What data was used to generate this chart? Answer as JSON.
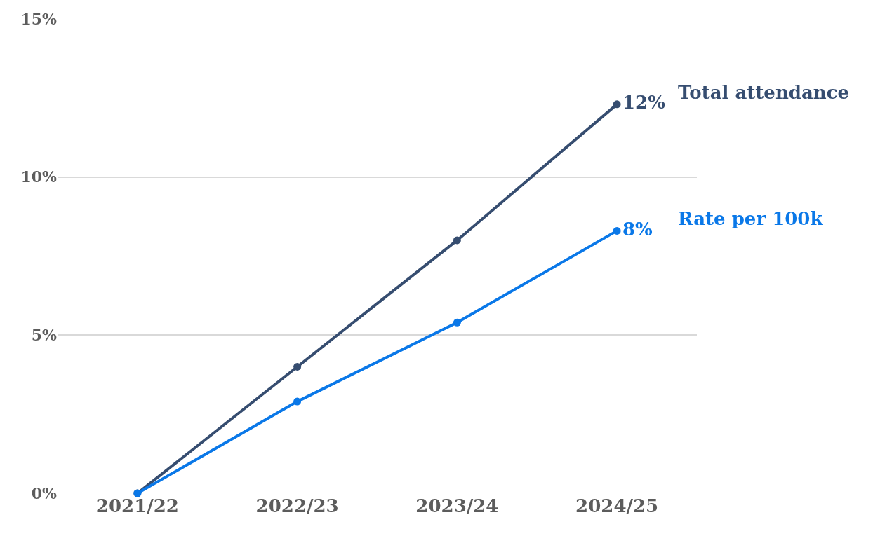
{
  "chart_data": {
    "type": "line",
    "categories": [
      "2021/22",
      "2022/23",
      "2023/24",
      "2024/25"
    ],
    "series": [
      {
        "name": "Total attendance",
        "color": "#364d70",
        "values": [
          0,
          4.0,
          8.0,
          12.3
        ],
        "value_labels": [
          null,
          null,
          null,
          "12%"
        ]
      },
      {
        "name": "Rate per 100k",
        "color": "#0a78e8",
        "values": [
          0,
          2.9,
          5.4,
          8.3
        ],
        "value_labels": [
          null,
          null,
          null,
          "8%"
        ]
      }
    ],
    "ylim": [
      0,
      15
    ],
    "yticks": [
      {
        "value": 0,
        "label": "0%"
      },
      {
        "value": 5,
        "label": "5%"
      },
      {
        "value": 10,
        "label": "10%"
      },
      {
        "value": 15,
        "label": "15%"
      }
    ],
    "grid": "y",
    "legend": false,
    "marker": "circle",
    "line_style": "solid"
  }
}
